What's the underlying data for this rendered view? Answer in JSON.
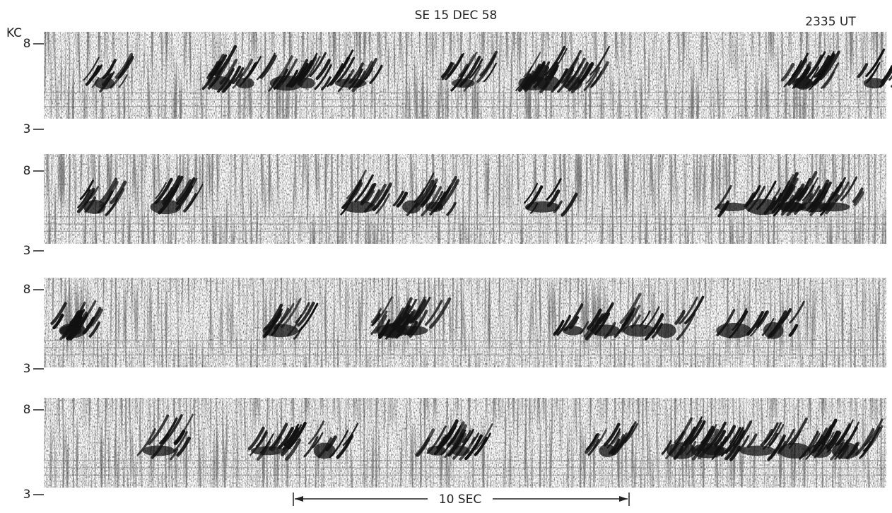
{
  "header": {
    "title": "SE 15 DEC 58",
    "time": "2335 UT"
  },
  "axis_unit": "KC",
  "strips": [
    {
      "top_label": "8",
      "bottom_label": "3"
    },
    {
      "top_label": "8",
      "bottom_label": "3"
    },
    {
      "top_label": "8",
      "bottom_label": "3"
    },
    {
      "top_label": "8",
      "bottom_label": "3"
    }
  ],
  "scale_bar": {
    "label": "10 SEC"
  }
}
